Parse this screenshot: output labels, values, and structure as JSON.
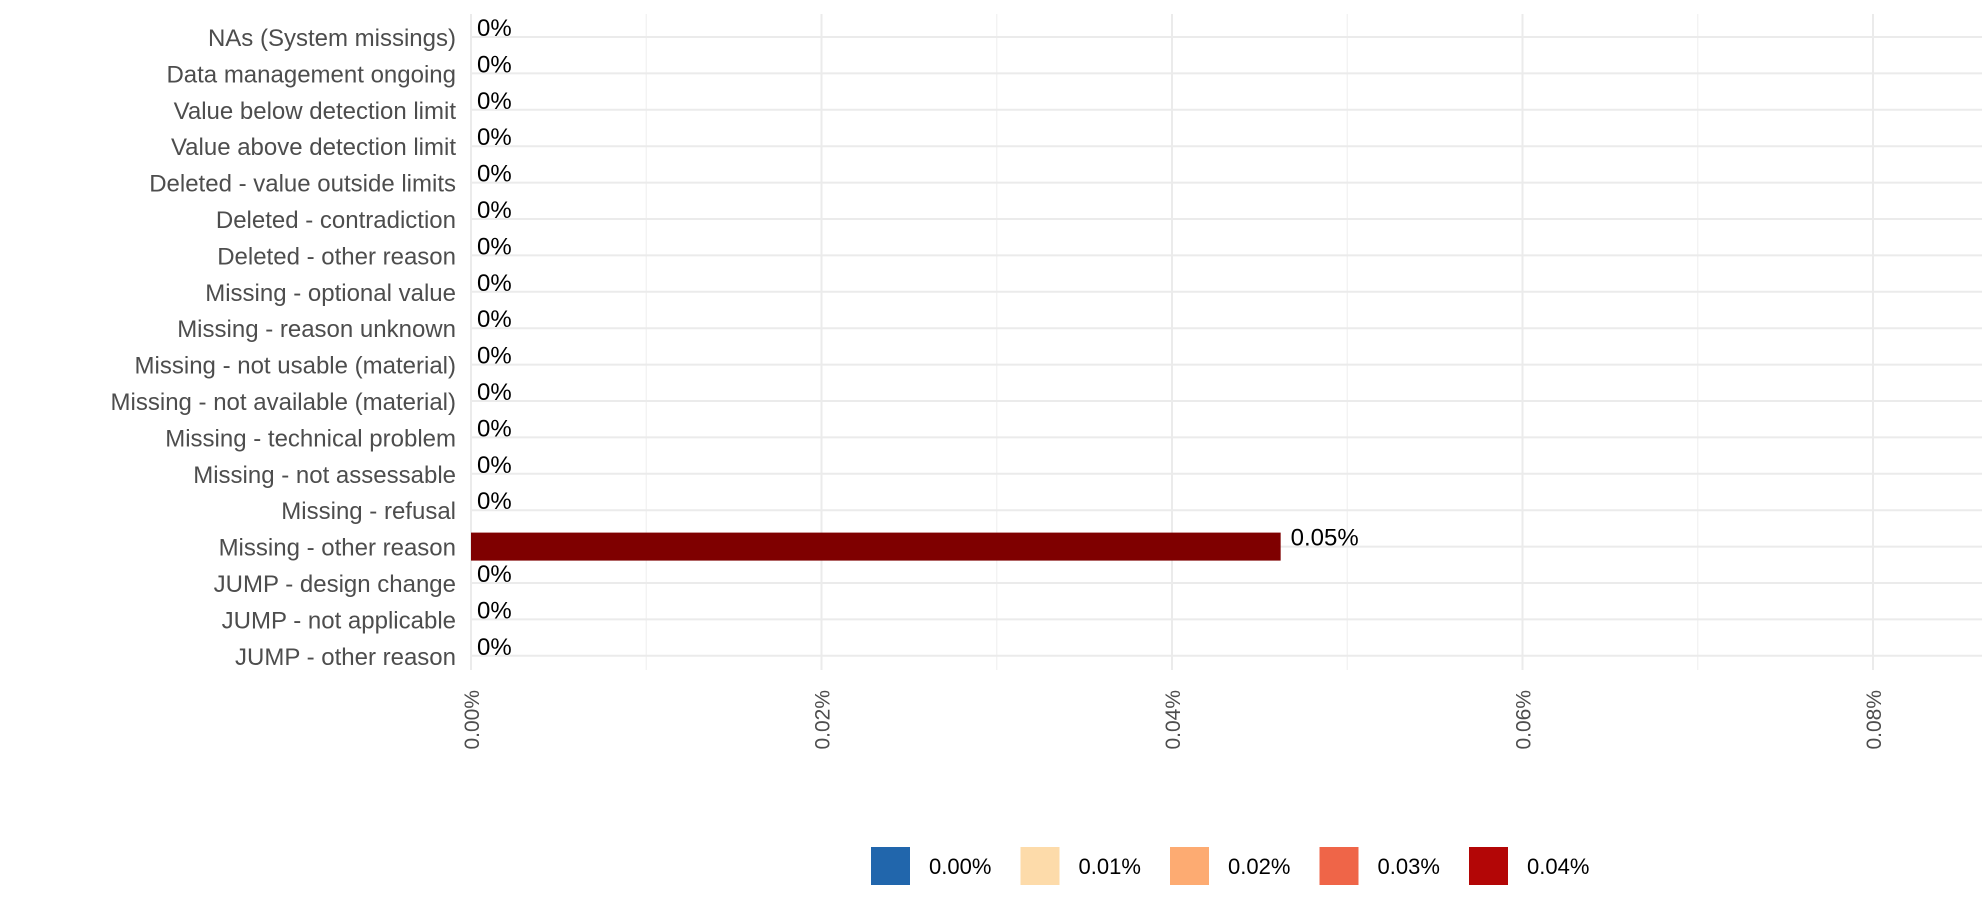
{
  "chart_data": {
    "type": "bar",
    "orientation": "horizontal",
    "title": "",
    "xlabel": "",
    "ylabel": "",
    "categories": [
      "NAs (System missings)",
      "Data management ongoing",
      "Value below detection limit",
      "Value above detection limit",
      "Deleted - value outside limits",
      "Deleted - contradiction",
      "Deleted - other reason",
      "Missing - optional value",
      "Missing - reason unknown",
      "Missing - not usable (material)",
      "Missing - not available (material)",
      "Missing - technical problem",
      "Missing - not assessable",
      "Missing - refusal",
      "Missing - other reason",
      "JUMP - design change",
      "JUMP - not applicable",
      "JUMP - other reason"
    ],
    "values": [
      0,
      0,
      0,
      0,
      0,
      0,
      0,
      0,
      0,
      0,
      0,
      0,
      0,
      0,
      0.0462,
      0,
      0,
      0
    ],
    "value_labels": [
      "0%",
      "0%",
      "0%",
      "0%",
      "0%",
      "0%",
      "0%",
      "0%",
      "0%",
      "0%",
      "0%",
      "0%",
      "0%",
      "0%",
      "0.05%",
      "0%",
      "0%",
      "0%"
    ],
    "value_unit": "percent",
    "xlim": [
      0,
      0.086
    ],
    "x_ticks": [
      0,
      0.02,
      0.04,
      0.06,
      0.08
    ],
    "x_tick_labels": [
      "0.00%",
      "0.02%",
      "0.04%",
      "0.06%",
      "0.08%"
    ],
    "grid": true,
    "bar_color": "#7f0000",
    "legend": {
      "position": "bottom",
      "items": [
        {
          "label": "0.00%",
          "color": "#2166ac"
        },
        {
          "label": "0.01%",
          "color": "#fddbaa"
        },
        {
          "label": "0.02%",
          "color": "#fdab72"
        },
        {
          "label": "0.03%",
          "color": "#ef6548"
        },
        {
          "label": "0.04%",
          "color": "#b30606"
        }
      ]
    }
  }
}
